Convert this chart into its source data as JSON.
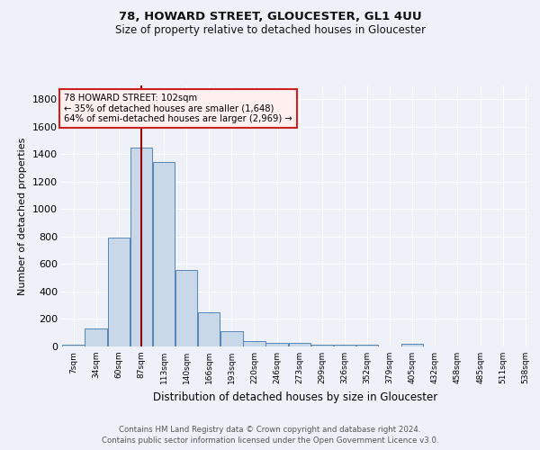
{
  "title1": "78, HOWARD STREET, GLOUCESTER, GL1 4UU",
  "title2": "Size of property relative to detached houses in Gloucester",
  "xlabel": "Distribution of detached houses by size in Gloucester",
  "ylabel": "Number of detached properties",
  "footer1": "Contains HM Land Registry data © Crown copyright and database right 2024.",
  "footer2": "Contains public sector information licensed under the Open Government Licence v3.0.",
  "bar_labels": [
    "7sqm",
    "34sqm",
    "60sqm",
    "87sqm",
    "113sqm",
    "140sqm",
    "166sqm",
    "193sqm",
    "220sqm",
    "246sqm",
    "273sqm",
    "299sqm",
    "326sqm",
    "352sqm",
    "379sqm",
    "405sqm",
    "432sqm",
    "458sqm",
    "485sqm",
    "511sqm",
    "538sqm"
  ],
  "bar_values": [
    10,
    130,
    790,
    1450,
    1340,
    560,
    248,
    110,
    40,
    27,
    27,
    15,
    15,
    10,
    0,
    20,
    0,
    0,
    0,
    0,
    0
  ],
  "bar_color": "#c8d8e8",
  "bar_edge_color": "#5585b5",
  "ylim": [
    0,
    1900
  ],
  "annotation_text_line1": "78 HOWARD STREET: 102sqm",
  "annotation_text_line2": "← 35% of detached houses are smaller (1,648)",
  "annotation_text_line3": "64% of semi-detached houses are larger (2,969) →",
  "vline_x": 102,
  "bg_color": "#eef2f8",
  "plot_bg_color": "#eef2f8",
  "grid_color": "#ffffff",
  "annotation_box_facecolor": "#fff0f0",
  "annotation_box_edge": "#cc2222",
  "x_min": 7,
  "x_max": 538,
  "bin_width": 27,
  "yticks": [
    0,
    200,
    400,
    600,
    800,
    1000,
    1200,
    1400,
    1600,
    1800
  ]
}
